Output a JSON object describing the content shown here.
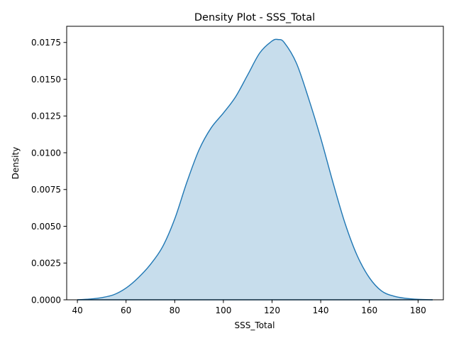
{
  "chart_data": {
    "type": "area",
    "title": "Density Plot - SSS_Total",
    "xlabel": "SSS_Total",
    "ylabel": "Density",
    "xlim": [
      35.6,
      190.4
    ],
    "ylim": [
      0,
      0.0186
    ],
    "xticks": [
      40,
      60,
      80,
      100,
      120,
      140,
      160,
      180
    ],
    "yticks": [
      "0.0000",
      "0.0025",
      "0.0050",
      "0.0075",
      "0.0100",
      "0.0125",
      "0.0150",
      "0.0175"
    ],
    "grid": false,
    "line_color": "#1f77b4",
    "fill_color": "#1f77b4",
    "fill_opacity": 0.25,
    "series": [
      {
        "x": [
          40,
          45,
          50,
          55,
          60,
          65,
          70,
          75,
          80,
          85,
          90,
          95,
          100,
          105,
          110,
          115,
          120,
          122.5,
          125,
          130,
          135,
          140,
          145,
          150,
          155,
          160,
          165,
          170,
          175,
          180,
          186
        ],
        "y": [
          0.0,
          5e-05,
          0.00015,
          0.00035,
          0.0008,
          0.0015,
          0.0024,
          0.0036,
          0.0055,
          0.008,
          0.0102,
          0.0117,
          0.0127,
          0.0138,
          0.0153,
          0.0168,
          0.0176,
          0.0177,
          0.0175,
          0.0161,
          0.0137,
          0.011,
          0.008,
          0.0052,
          0.003,
          0.0015,
          0.0006,
          0.00025,
          0.0001,
          3e-05,
          0.0
        ]
      }
    ]
  }
}
